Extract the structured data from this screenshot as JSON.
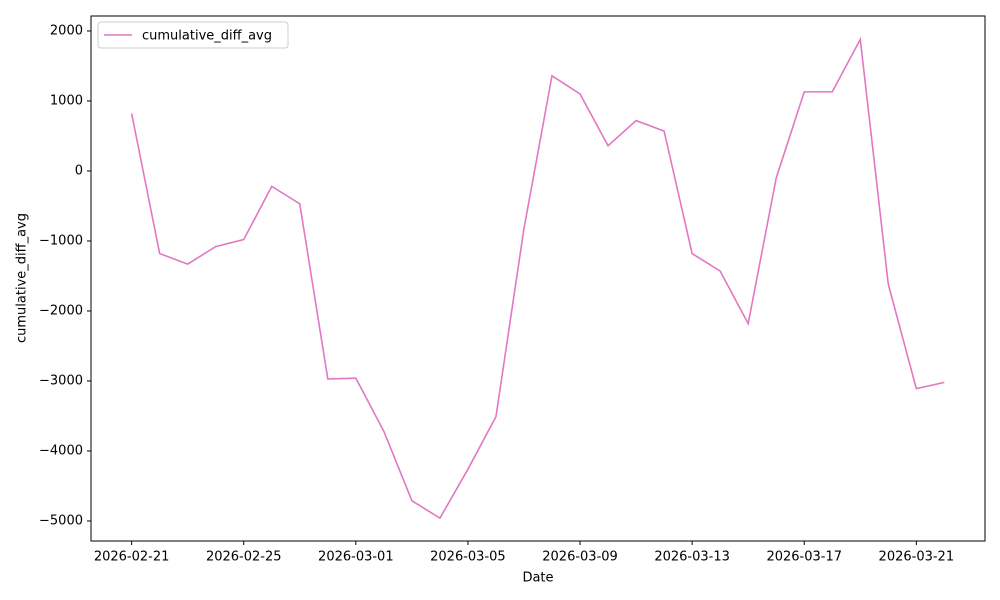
{
  "chart_data": {
    "type": "line",
    "x_label": "Date",
    "y_label": "cumulative_diff_avg",
    "x": [
      "2026-02-21",
      "2026-02-22",
      "2026-02-23",
      "2026-02-24",
      "2026-02-25",
      "2026-02-26",
      "2026-02-27",
      "2026-02-28",
      "2026-03-01",
      "2026-03-02",
      "2026-03-03",
      "2026-03-04",
      "2026-03-05",
      "2026-03-06",
      "2026-03-07",
      "2026-03-08",
      "2026-03-09",
      "2026-03-10",
      "2026-03-11",
      "2026-03-12",
      "2026-03-13",
      "2026-03-14",
      "2026-03-15",
      "2026-03-16",
      "2026-03-17",
      "2026-03-18",
      "2026-03-19",
      "2026-03-20",
      "2026-03-21",
      "2026-03-22"
    ],
    "series": [
      {
        "name": "cumulative_diff_avg",
        "color": "#e377c2",
        "values": [
          820,
          -1180,
          -1330,
          -1080,
          -980,
          -220,
          -470,
          -2970,
          -2960,
          -3720,
          -4710,
          -4960,
          -4260,
          -3510,
          -820,
          1360,
          1100,
          360,
          720,
          570,
          -1180,
          -1430,
          -2180,
          -100,
          1130,
          1130,
          1880,
          -1620,
          -3110,
          -3020
        ]
      }
    ],
    "xticks": [
      "2026-02-21",
      "2026-02-25",
      "2026-03-01",
      "2026-03-05",
      "2026-03-09",
      "2026-03-13",
      "2026-03-17",
      "2026-03-21"
    ],
    "ylim": [
      -5286,
      2214
    ],
    "yticks": [
      {
        "value": -5000,
        "label": "−5000"
      },
      {
        "value": -4000,
        "label": "−4000"
      },
      {
        "value": -3000,
        "label": "−3000"
      },
      {
        "value": -2000,
        "label": "−2000"
      },
      {
        "value": -1000,
        "label": "−1000"
      },
      0,
      1000,
      2000
    ],
    "grid": false,
    "legend": "upper left"
  }
}
